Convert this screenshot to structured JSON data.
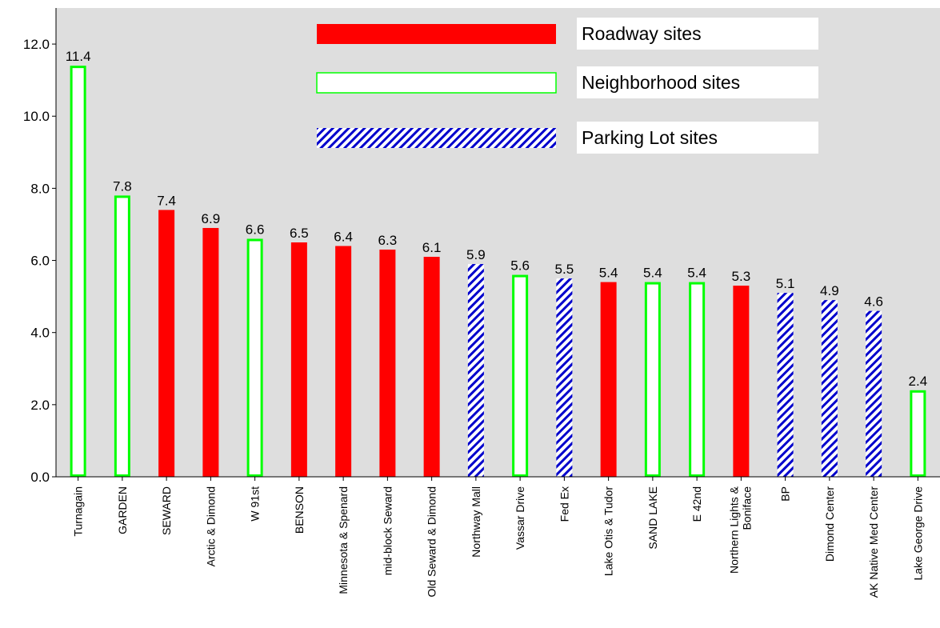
{
  "chart_data": {
    "type": "bar",
    "categories": [
      "Turnagain",
      "GARDEN",
      "SEWARD",
      "Arctic & Dimond",
      "W 91st",
      "BENSON",
      "Minnesota & Spenard",
      "mid-block Seward",
      "Old Seward & Dimond",
      "Northway Mall",
      "Vassar Drive",
      "Fed Ex",
      "Lake Otis & Tudor",
      "SAND LAKE",
      "E 42nd",
      "Northern Lights & Boniface",
      "BP",
      "Dimond Center",
      "AK Native Med Center",
      "Lake George Drive"
    ],
    "values": [
      11.4,
      7.8,
      7.4,
      6.9,
      6.6,
      6.5,
      6.4,
      6.3,
      6.1,
      5.9,
      5.6,
      5.5,
      5.4,
      5.4,
      5.4,
      5.3,
      5.1,
      4.9,
      4.6,
      2.4
    ],
    "value_labels": [
      "11.4",
      "7.8",
      "7.4",
      "6.9",
      "6.6",
      "6.5",
      "6.4",
      "6.3",
      "6.1",
      "5.9",
      "5.6",
      "5.5",
      "5.4",
      "5.4",
      "5.4",
      "5.3",
      "5.1",
      "4.9",
      "4.6",
      "2.4"
    ],
    "site_types": [
      "neighborhood",
      "neighborhood",
      "roadway",
      "roadway",
      "neighborhood",
      "roadway",
      "roadway",
      "roadway",
      "roadway",
      "parking",
      "neighborhood",
      "parking",
      "roadway",
      "neighborhood",
      "neighborhood",
      "roadway",
      "parking",
      "parking",
      "parking",
      "neighborhood"
    ],
    "legend": [
      {
        "key": "roadway",
        "label": "Roadway sites"
      },
      {
        "key": "neighborhood",
        "label": "Neighborhood sites"
      },
      {
        "key": "parking",
        "label": "Parking Lot sites"
      }
    ],
    "legend_position": "top-center",
    "ylim": [
      0,
      13
    ],
    "yticks": [
      0,
      2,
      4,
      6,
      8,
      10,
      12
    ],
    "ytick_labels": [
      "0.0",
      "2.0",
      "4.0",
      "6.0",
      "8.0",
      "10.0",
      "12.0"
    ],
    "title": "",
    "xlabel": "",
    "ylabel": "",
    "grid": false,
    "colors": {
      "plot_background": "#dedede",
      "roadway_fill": "#ff0000",
      "neighborhood_stroke": "#00ff00",
      "neighborhood_fill": "#ffffff",
      "parking_stripe": "#0000cc",
      "parking_background": "#ffffff"
    }
  }
}
